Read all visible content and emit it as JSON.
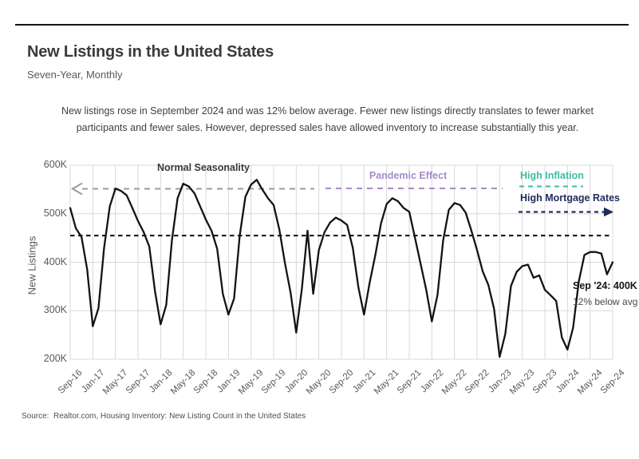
{
  "header": {
    "title": "New Listings in the United States",
    "subtitle": "Seven-Year, Monthly"
  },
  "description": {
    "line1": "New listings rose in September 2024 and was 12% below average. Fewer new listings directly translates to fewer market",
    "line2": "participants and fewer sales. However, depressed sales have allowed inventory to increase substantially this year."
  },
  "chart_data": {
    "type": "line",
    "title": "New Listings in the United States",
    "subtitle": "Seven-Year, Monthly",
    "ylabel": "New Listings",
    "xlabel": "",
    "grid": true,
    "start_month": "Sep-2016",
    "end_month": "Sep-2024",
    "frequency": "monthly",
    "unit": "thousands of new listings",
    "ylim_thousands": [
      200,
      600
    ],
    "y_tick_labels": [
      "200K",
      "300K",
      "400K",
      "500K",
      "600K"
    ],
    "x_tick_labels": [
      "Sep-16",
      "Jan-17",
      "May-17",
      "Sep-17",
      "Jan-18",
      "May-18",
      "Sep-18",
      "Jan-19",
      "May-19",
      "Sep-19",
      "Jan-20",
      "May-20",
      "Sep-20",
      "Jan-21",
      "May-21",
      "Sep-21",
      "Jan-22",
      "May-22",
      "Sep-22",
      "Jan-23",
      "May-23",
      "Sep-23",
      "Jan-24",
      "May-24",
      "Sep-24"
    ],
    "series": [
      {
        "name": "New Listings",
        "values_thousands": [
          512,
          470,
          452,
          385,
          268,
          305,
          430,
          515,
          552,
          547,
          538,
          512,
          485,
          462,
          432,
          340,
          272,
          312,
          445,
          532,
          562,
          556,
          542,
          515,
          488,
          465,
          428,
          335,
          292,
          325,
          455,
          535,
          560,
          570,
          550,
          532,
          518,
          468,
          398,
          337,
          255,
          345,
          465,
          335,
          425,
          462,
          482,
          492,
          486,
          477,
          430,
          348,
          292,
          358,
          415,
          480,
          520,
          532,
          526,
          512,
          504,
          451,
          397,
          343,
          278,
          332,
          445,
          508,
          522,
          518,
          502,
          465,
          425,
          381,
          353,
          304,
          205,
          252,
          351,
          380,
          392,
          395,
          368,
          373,
          343,
          332,
          320,
          245,
          220,
          265,
          360,
          415,
          421,
          421,
          418,
          375,
          400
        ]
      }
    ],
    "average_line": {
      "value_thousands": 455,
      "style": "dashed"
    },
    "annotations": [
      {
        "label": "Normal Seasonality",
        "style": "dashed line with left arrow"
      },
      {
        "label": "Pandemic Effect",
        "style": "dashed line"
      },
      {
        "label": "High Inflation",
        "style": "dashed line"
      },
      {
        "label": "High Mortgage Rates",
        "style": "dashed line with right arrow"
      },
      {
        "label": "Sep '24: 400K"
      },
      {
        "label": "12% below avg"
      }
    ],
    "colors": {
      "series": "#131313",
      "grid": "#d8d8d8",
      "average_line": "#0b0b0b",
      "normal_seasonality": "#3a3a3a",
      "normal_seasonality_line": "#9b9b9b",
      "pandemic": "#a48bc9",
      "inflation": "#3ebba4",
      "mortgage": "#1e2c5c",
      "tick": "#595959"
    }
  },
  "footer": {
    "source": "Source:  Realtor.com, Housing Inventory: New Listing Count in the United States"
  }
}
